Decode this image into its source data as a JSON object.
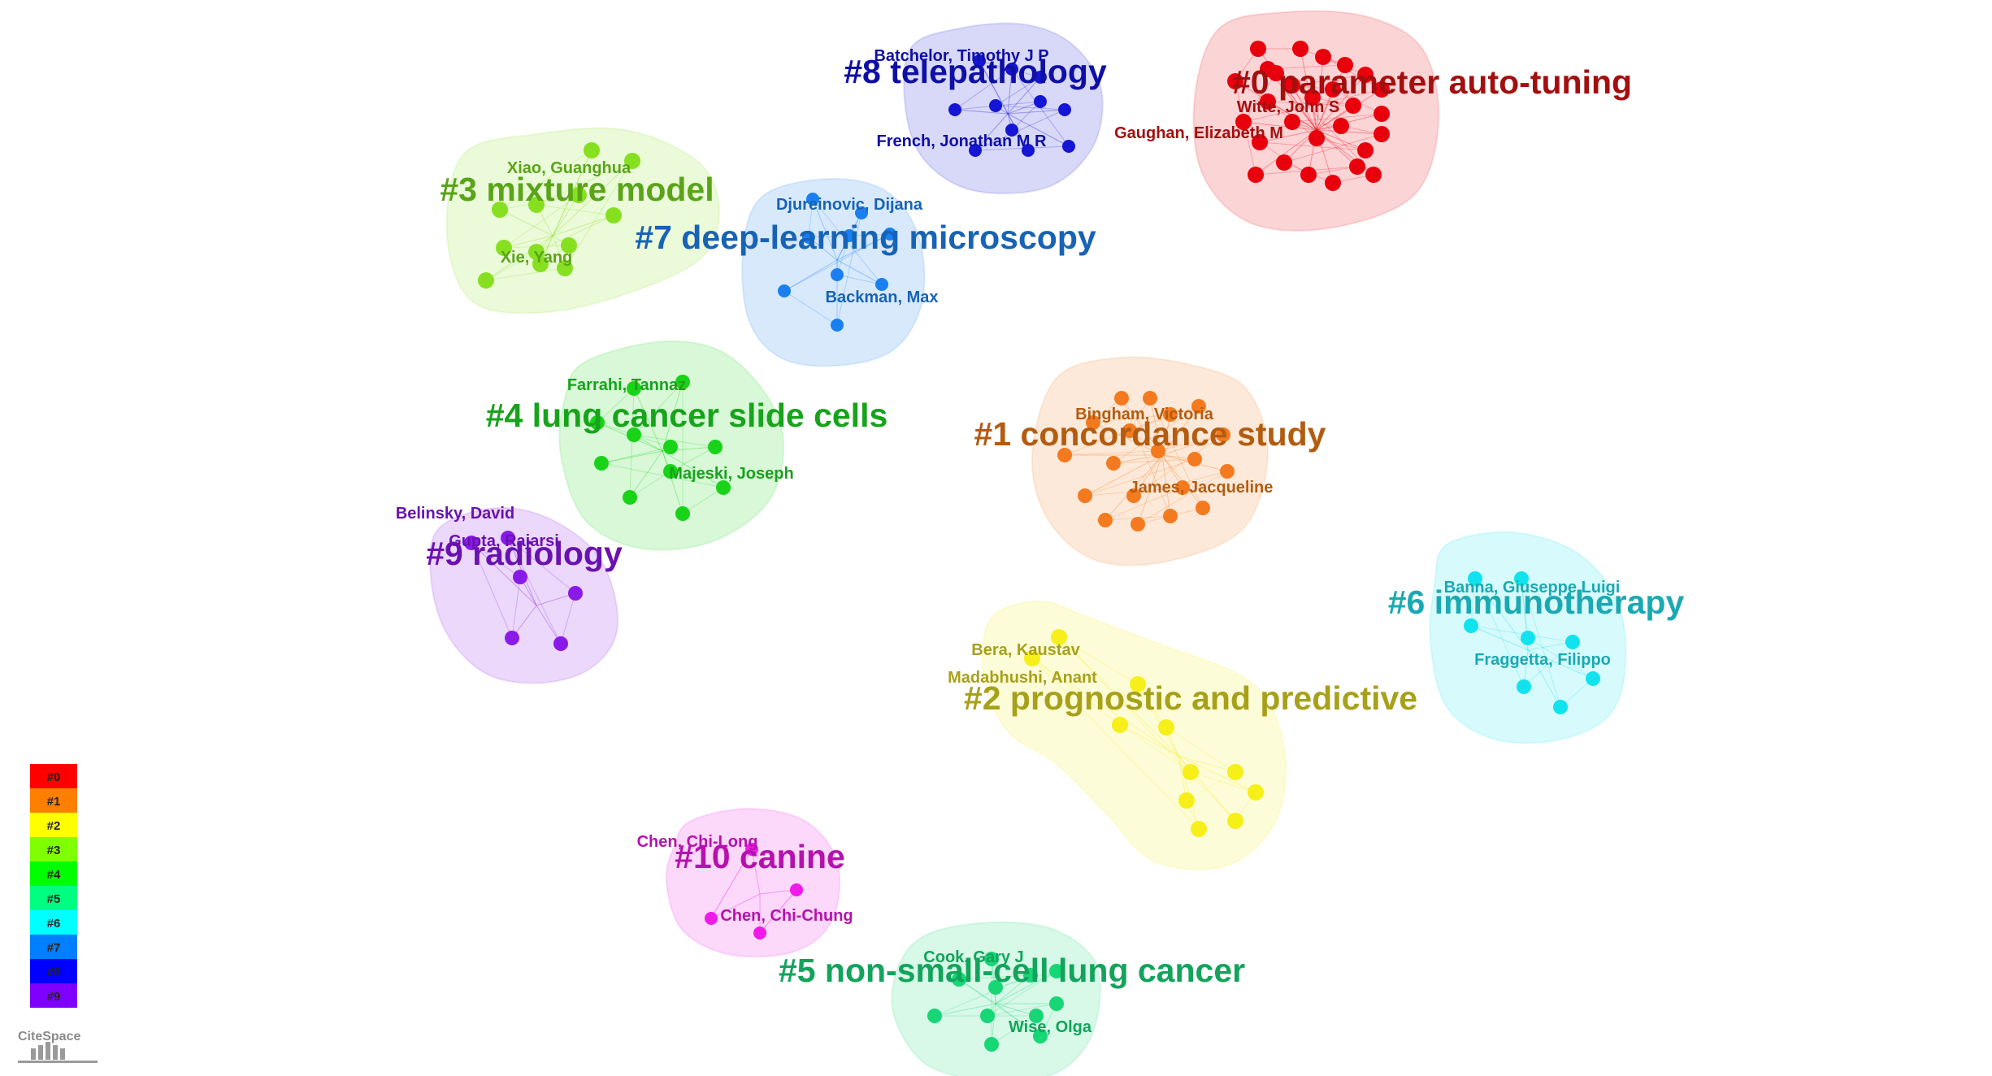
{
  "clusters": [
    {
      "id": 0,
      "label": "#0 parameter auto-tuning",
      "color": "#e8000c",
      "text_color": "#a30f0f",
      "authors": [
        "Witte, John S",
        "Gaughan, Elizabeth M"
      ]
    },
    {
      "id": 1,
      "label": "#1 concordance study",
      "color": "#f47a1f",
      "text_color": "#b35c10",
      "authors": [
        "Bingham, Victoria",
        "James, Jacqueline"
      ]
    },
    {
      "id": 2,
      "label": "#2 prognostic and predictive",
      "color": "#f6ef1a",
      "text_color": "#a7a11a",
      "authors": [
        "Bera, Kaustav",
        "Madabhushi, Anant"
      ]
    },
    {
      "id": 3,
      "label": "#3 mixture model",
      "color": "#86e020",
      "text_color": "#5aa419",
      "authors": [
        "Xiao, Guanghua",
        "Xie, Yang"
      ]
    },
    {
      "id": 4,
      "label": "#4 lung cancer slide cells",
      "color": "#18d318",
      "text_color": "#17a31b",
      "authors": [
        "Farrahi, Tannaz",
        "Majeski, Joseph"
      ]
    },
    {
      "id": 5,
      "label": "#5 non-small-cell lung cancer",
      "color": "#17d676",
      "text_color": "#12a45b",
      "authors": [
        "Cook, Gary J",
        "Wise, Olga"
      ]
    },
    {
      "id": 6,
      "label": "#6 immunotherapy",
      "color": "#10e3ee",
      "text_color": "#1aa9b3",
      "authors": [
        "Banna, Giuseppe Luigi",
        "Fraggetta, Filippo"
      ]
    },
    {
      "id": 7,
      "label": "#7 deep-learning microscopy",
      "color": "#1a7ff0",
      "text_color": "#1763b5",
      "authors": [
        "Djureinovic, Dijana",
        "Backman, Max"
      ]
    },
    {
      "id": 8,
      "label": "#8 telepathology",
      "color": "#1515d6",
      "text_color": "#0f0fa6",
      "authors": [
        "Batchelor, Timothy J P",
        "French, Jonathan M R"
      ]
    },
    {
      "id": 9,
      "label": "#9 radiology",
      "color": "#8a1ae8",
      "text_color": "#6a12b0",
      "authors": [
        "Belinsky, David",
        "Gupta, Rajarsi"
      ]
    },
    {
      "id": 10,
      "label": "#10 canine",
      "color": "#f01ae8",
      "text_color": "#b512ad",
      "authors": [
        "Chen, Chi-Long",
        "Chen, Chi-Chung"
      ]
    }
  ],
  "legend": [
    {
      "label": "#0",
      "color": "#ff0000"
    },
    {
      "label": "#1",
      "color": "#ff7f00"
    },
    {
      "label": "#2",
      "color": "#ffff00"
    },
    {
      "label": "#3",
      "color": "#80ff00"
    },
    {
      "label": "#4",
      "color": "#00ff00"
    },
    {
      "label": "#5",
      "color": "#00ff80"
    },
    {
      "label": "#6",
      "color": "#00ffff"
    },
    {
      "label": "#7",
      "color": "#0080ff"
    },
    {
      "label": "#8",
      "color": "#0000ff"
    },
    {
      "label": "#9",
      "color": "#8000ff"
    }
  ],
  "logo": {
    "text": "CiteSpace"
  }
}
